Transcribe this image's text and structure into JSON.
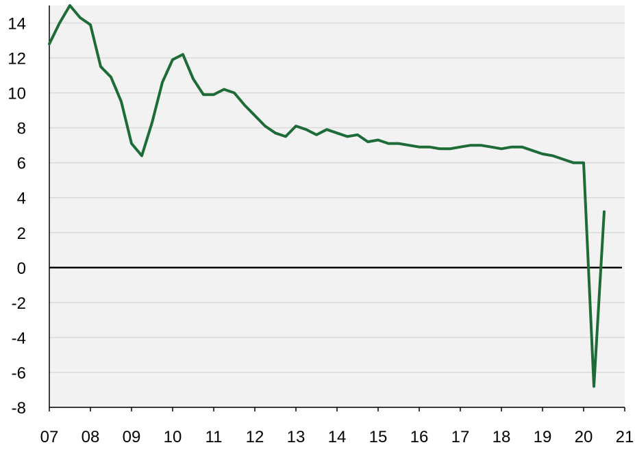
{
  "chart_data": {
    "type": "line",
    "title": "",
    "xlabel": "",
    "ylabel": "",
    "xlim": [
      2007,
      2021
    ],
    "ylim": [
      -8,
      15
    ],
    "grid": true,
    "x_tick_labels": [
      "07",
      "08",
      "09",
      "10",
      "11",
      "12",
      "13",
      "14",
      "15",
      "16",
      "17",
      "18",
      "19",
      "20",
      "21"
    ],
    "y_tick_labels": [
      "14",
      "12",
      "10",
      "8",
      "6",
      "4",
      "2",
      "0",
      "-2",
      "-4",
      "-6",
      "-8"
    ],
    "y_tick_values": [
      14,
      12,
      10,
      8,
      6,
      4,
      2,
      0,
      -2,
      -4,
      -6,
      -8
    ],
    "colors": {
      "series": "#1d6b36",
      "zero_line": "#000000",
      "plot_bg": "#f2f2f2",
      "grid": "#dadada"
    },
    "series": [
      {
        "x": [
          2007.0,
          2007.25,
          2007.5,
          2007.75,
          2008.0,
          2008.25,
          2008.5,
          2008.75,
          2009.0,
          2009.25,
          2009.5,
          2009.75,
          2010.0,
          2010.25,
          2010.5,
          2010.75,
          2011.0,
          2011.25,
          2011.5,
          2011.75,
          2012.0,
          2012.25,
          2012.5,
          2012.75,
          2013.0,
          2013.25,
          2013.5,
          2013.75,
          2014.0,
          2014.25,
          2014.5,
          2014.75,
          2015.0,
          2015.25,
          2015.5,
          2015.75,
          2016.0,
          2016.25,
          2016.5,
          2016.75,
          2017.0,
          2017.25,
          2017.5,
          2017.75,
          2018.0,
          2018.25,
          2018.5,
          2018.75,
          2019.0,
          2019.25,
          2019.5,
          2019.75,
          2020.0,
          2020.25,
          2020.5
        ],
        "values": [
          12.8,
          14.0,
          15.0,
          14.3,
          13.9,
          11.5,
          10.9,
          9.5,
          7.1,
          6.4,
          8.3,
          10.6,
          11.9,
          12.2,
          10.8,
          9.9,
          9.9,
          10.2,
          10.0,
          9.3,
          8.7,
          8.1,
          7.7,
          7.5,
          8.1,
          7.9,
          7.6,
          7.9,
          7.7,
          7.5,
          7.6,
          7.2,
          7.3,
          7.1,
          7.1,
          7.0,
          6.9,
          6.9,
          6.8,
          6.8,
          6.9,
          7.0,
          7.0,
          6.9,
          6.8,
          6.9,
          6.9,
          6.7,
          6.5,
          6.4,
          6.2,
          6.0,
          6.0,
          -6.8,
          3.2
        ]
      }
    ]
  }
}
